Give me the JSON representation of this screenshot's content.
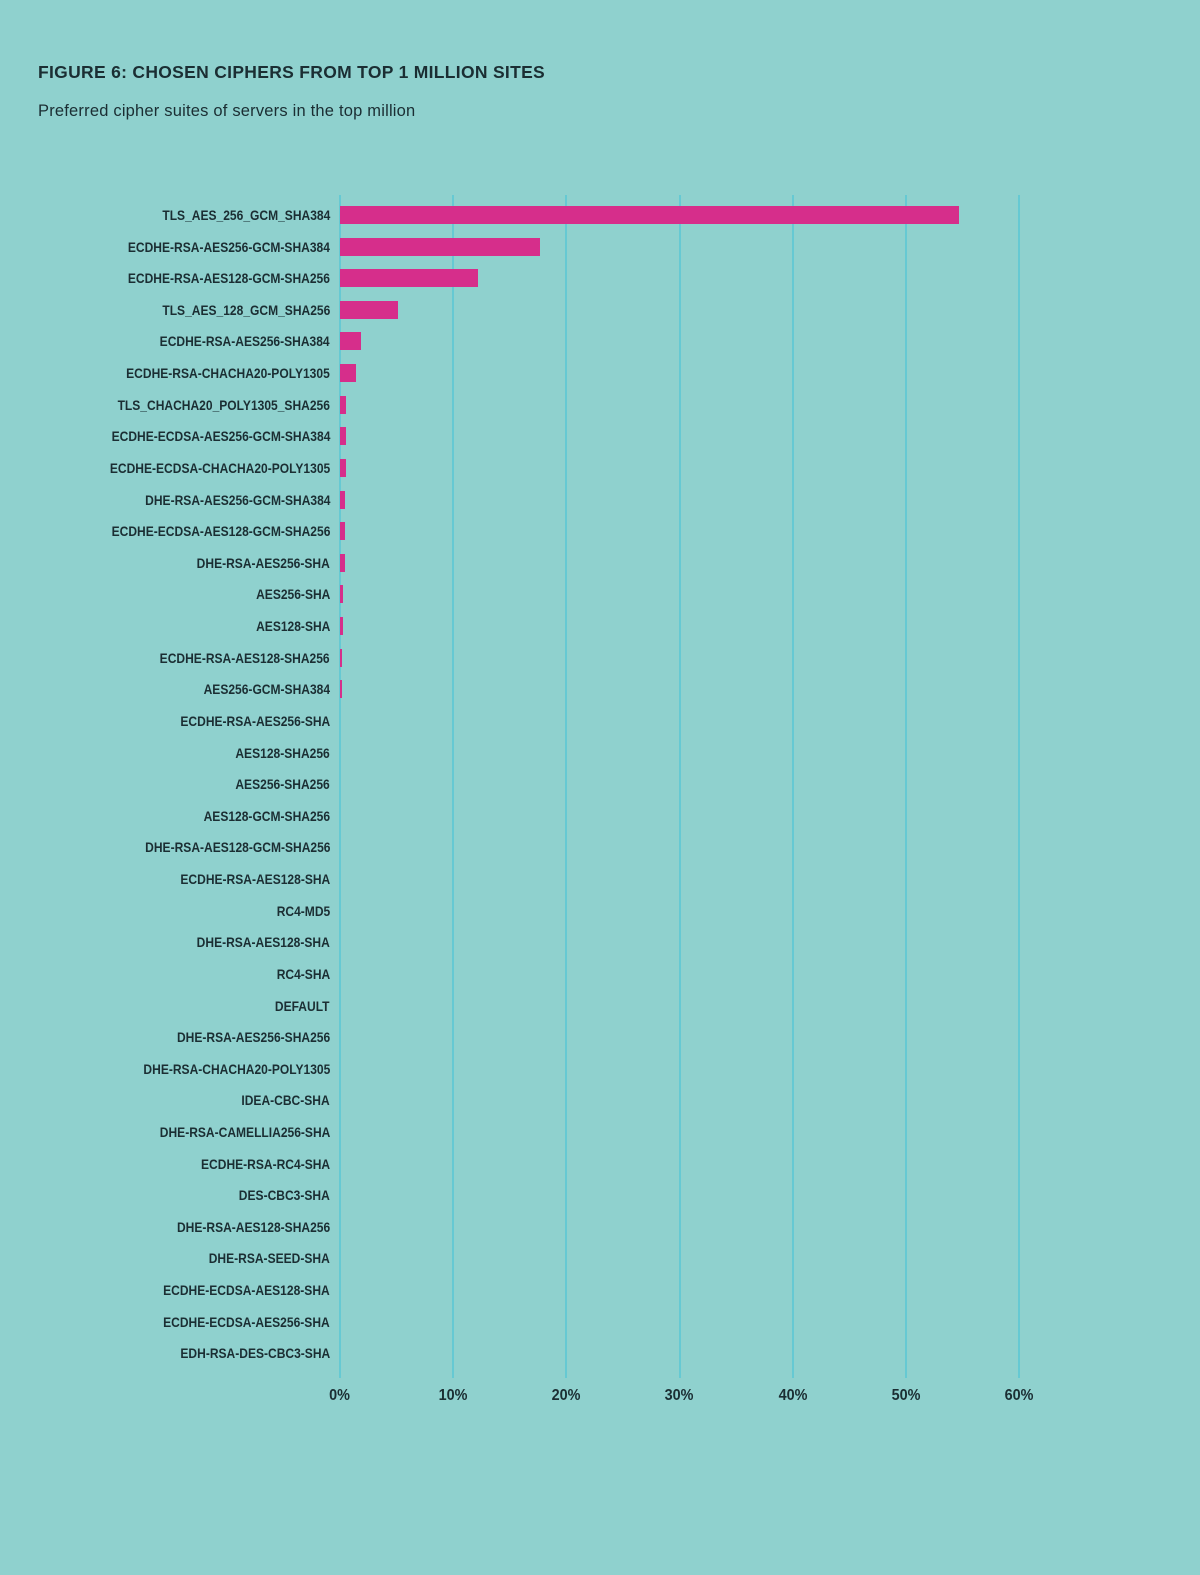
{
  "page": {
    "background_color": "#8FD1CE",
    "text_color": "#1B2E33"
  },
  "header": {
    "title": "FIGURE 6: CHOSEN CIPHERS FROM TOP 1 MILLION SITES",
    "subtitle": "Preferred cipher suites of servers in the top million"
  },
  "chart_data": {
    "type": "bar",
    "orientation": "horizontal",
    "title": "FIGURE 6: CHOSEN CIPHERS FROM TOP 1 MILLION SITES",
    "subtitle": "Preferred cipher suites of servers in the top million",
    "xlabel": "",
    "ylabel": "",
    "xlim": [
      0,
      60
    ],
    "x_ticks": [
      "0%",
      "10%",
      "20%",
      "30%",
      "40%",
      "50%",
      "60%"
    ],
    "x_tick_values": [
      0,
      10,
      20,
      30,
      40,
      50,
      60
    ],
    "grid": true,
    "legend": false,
    "bar_color": "#D62E8B",
    "gridline_color": "#66C9D3",
    "categories": [
      "TLS_AES_256_GCM_SHA384",
      "ECDHE-RSA-AES256-GCM-SHA384",
      "ECDHE-RSA-AES128-GCM-SHA256",
      "TLS_AES_128_GCM_SHA256",
      "ECDHE-RSA-AES256-SHA384",
      "ECDHE-RSA-CHACHA20-POLY1305",
      "TLS_CHACHA20_POLY1305_SHA256",
      "ECDHE-ECDSA-AES256-GCM-SHA384",
      "ECDHE-ECDSA-CHACHA20-POLY1305",
      "DHE-RSA-AES256-GCM-SHA384",
      "ECDHE-ECDSA-AES128-GCM-SHA256",
      "DHE-RSA-AES256-SHA",
      "AES256-SHA",
      "AES128-SHA",
      "ECDHE-RSA-AES128-SHA256",
      "AES256-GCM-SHA384",
      "ECDHE-RSA-AES256-SHA",
      "AES128-SHA256",
      "AES256-SHA256",
      "AES128-GCM-SHA256",
      "DHE-RSA-AES128-GCM-SHA256",
      "ECDHE-RSA-AES128-SHA",
      "RC4-MD5",
      "DHE-RSA-AES128-SHA",
      "RC4-SHA",
      "DEFAULT",
      "DHE-RSA-AES256-SHA256",
      "DHE-RSA-CHACHA20-POLY1305",
      "IDEA-CBC-SHA",
      "DHE-RSA-CAMELLIA256-SHA",
      "ECDHE-RSA-RC4-SHA",
      "DES-CBC3-SHA",
      "DHE-RSA-AES128-SHA256",
      "DHE-RSA-SEED-SHA",
      "ECDHE-ECDSA-AES128-SHA",
      "ECDHE-ECDSA-AES256-SHA",
      "EDH-RSA-DES-CBC3-SHA"
    ],
    "values": [
      54.7,
      17.7,
      12.2,
      5.1,
      1.85,
      1.4,
      0.55,
      0.5,
      0.5,
      0.45,
      0.4,
      0.4,
      0.25,
      0.25,
      0.2,
      0.15,
      0.06,
      0.05,
      0.05,
      0.04,
      0.04,
      0.04,
      0.03,
      0.03,
      0.03,
      0.02,
      0.02,
      0.02,
      0.02,
      0.01,
      0.01,
      0.01,
      0.01,
      0.01,
      0.005,
      0.005,
      0.005
    ]
  }
}
